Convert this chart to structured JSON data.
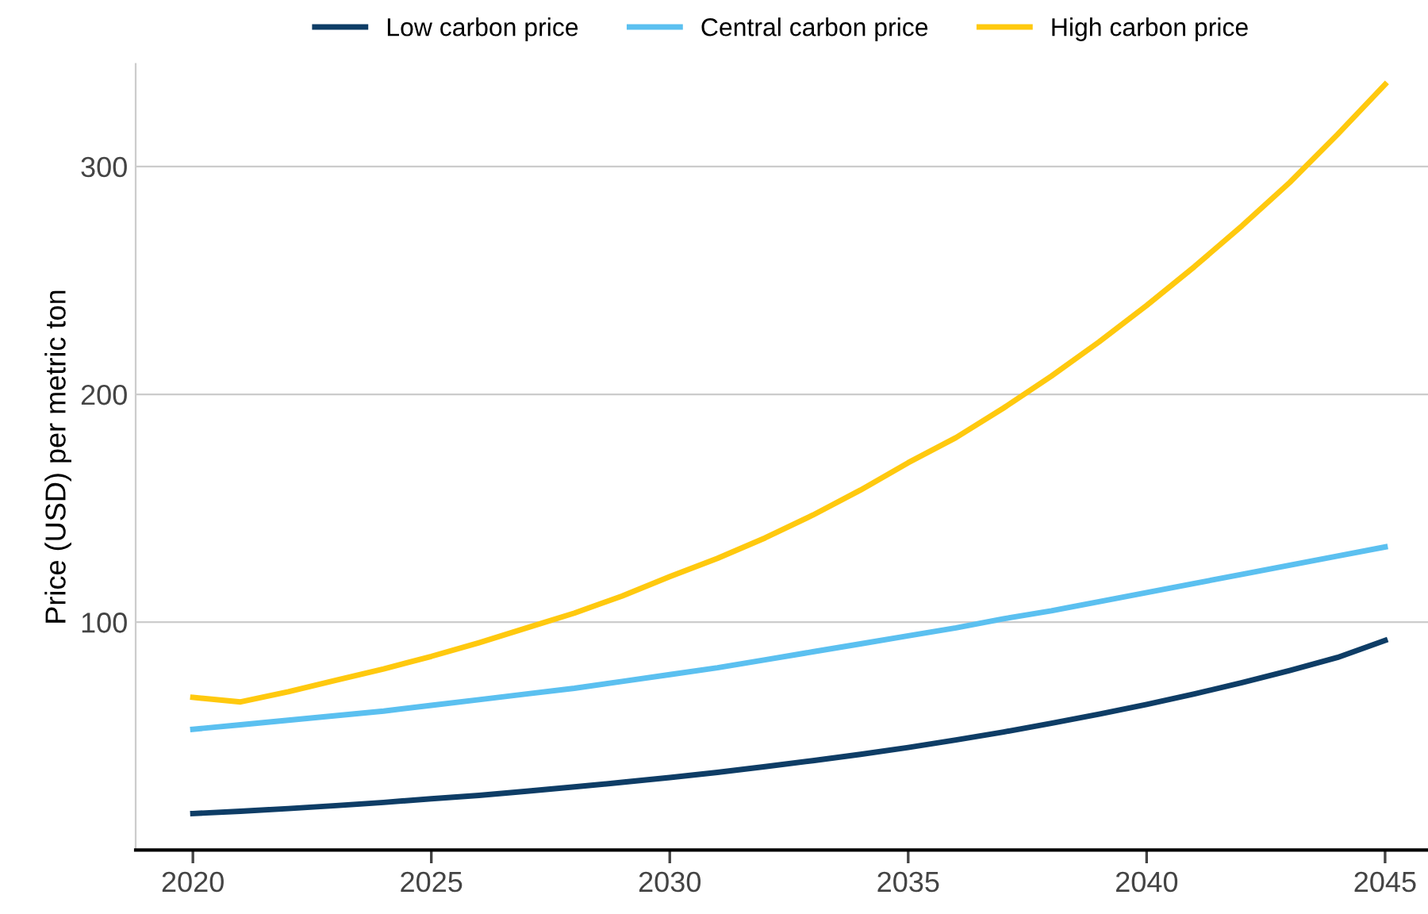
{
  "chart_data": {
    "type": "line",
    "ylabel": "Price (USD) per metric ton",
    "x": [
      2020,
      2021,
      2022,
      2023,
      2024,
      2025,
      2026,
      2027,
      2028,
      2029,
      2030,
      2031,
      2032,
      2033,
      2034,
      2035,
      2036,
      2037,
      2038,
      2039,
      2040,
      2041,
      2042,
      2043,
      2044,
      2045
    ],
    "series": [
      {
        "name": "Low carbon price",
        "color": "#0e3d66",
        "values": [
          16,
          17,
          18.2,
          19.5,
          20.9,
          22.5,
          24,
          25.8,
          27.7,
          29.7,
          31.8,
          34.1,
          36.6,
          39.2,
          42,
          45,
          48.3,
          51.8,
          55.6,
          59.6,
          63.9,
          68.5,
          73.5,
          78.8,
          84.5,
          92
        ]
      },
      {
        "name": "Central carbon price",
        "color": "#5bc0f0",
        "values": [
          53,
          55,
          57,
          59,
          61,
          63.5,
          66,
          68.5,
          71,
          74,
          77,
          80,
          83.5,
          87,
          90.5,
          94,
          97.5,
          101.5,
          105,
          109,
          113,
          117,
          121,
          125,
          129,
          133
        ]
      },
      {
        "name": "High carbon price",
        "color": "#ffc90e",
        "values": [
          67,
          65,
          69.5,
          74.5,
          79.5,
          85,
          91,
          97.5,
          104,
          111.5,
          120,
          128,
          137,
          147,
          158,
          170,
          181,
          194,
          208,
          223,
          239,
          256,
          274,
          293,
          314,
          336
        ]
      }
    ],
    "xlim": [
      2018.8,
      2045.9
    ],
    "xticks": [
      2020,
      2025,
      2030,
      2035,
      2040,
      2045
    ],
    "ylim": [
      0,
      345
    ],
    "yticks": [
      100,
      200,
      300
    ],
    "grid": "y",
    "legend": "top",
    "marker": "none",
    "line_style": "solid"
  }
}
